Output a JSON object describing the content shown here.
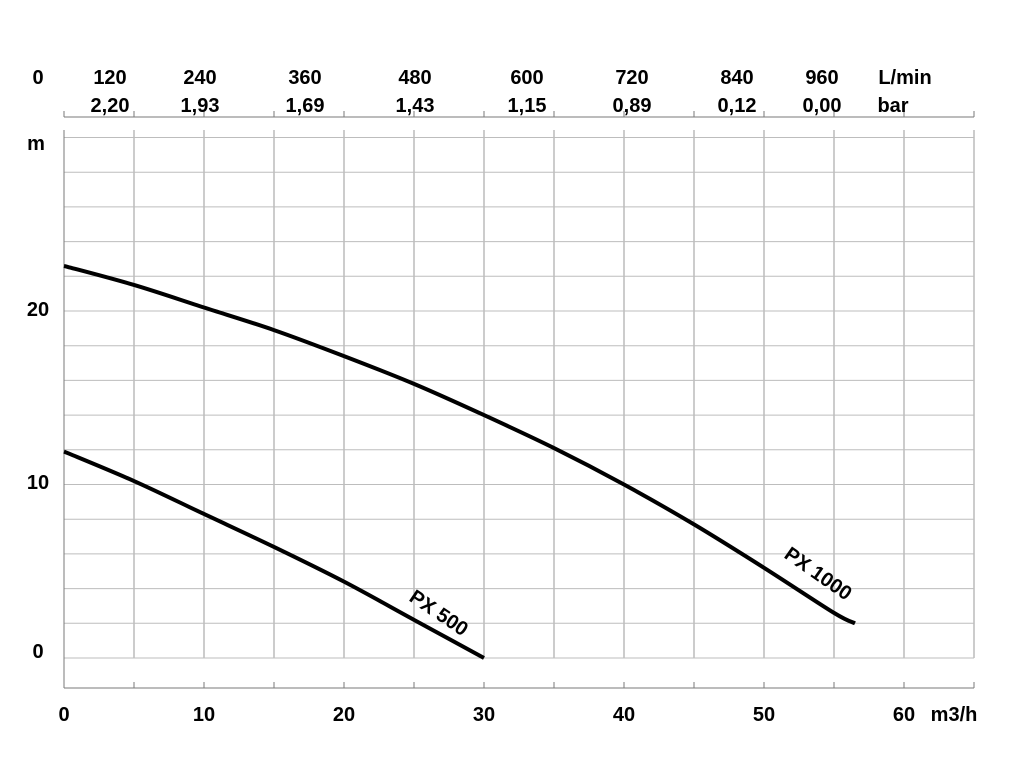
{
  "chart_data": {
    "type": "line",
    "x_axis": {
      "unit": "m3/h",
      "range": [
        0,
        65
      ],
      "ticks": [
        "0",
        "10",
        "20",
        "30",
        "40",
        "50",
        "60"
      ]
    },
    "y_axis": {
      "unit": "m",
      "range": [
        -2,
        30
      ],
      "ticks": [
        "0",
        "10",
        "20"
      ]
    },
    "top_axis_flow": {
      "unit": "L/min",
      "ticks": [
        "0",
        "120",
        "240",
        "360",
        "480",
        "600",
        "720",
        "840",
        "960"
      ]
    },
    "top_axis_pressure": {
      "unit": "bar",
      "ticks": [
        "2,20",
        "1,93",
        "1,69",
        "1,43",
        "1,15",
        "0,89",
        "0,12",
        "0,00"
      ]
    },
    "series": [
      {
        "name": "PX 500",
        "x": [
          0,
          5,
          10,
          15,
          20,
          25,
          30
        ],
        "y": [
          11.9,
          10.2,
          8.3,
          6.4,
          4.4,
          2.2,
          0
        ]
      },
      {
        "name": "PX 1000",
        "x": [
          0,
          5,
          10,
          15,
          20,
          25,
          30,
          35,
          40,
          45,
          50,
          55,
          56.5
        ],
        "y": [
          22.6,
          21.5,
          20.2,
          18.9,
          17.4,
          15.8,
          14.0,
          12.1,
          10.0,
          7.7,
          5.2,
          2.6,
          2.0
        ]
      }
    ],
    "grid": true,
    "legend": "none"
  }
}
